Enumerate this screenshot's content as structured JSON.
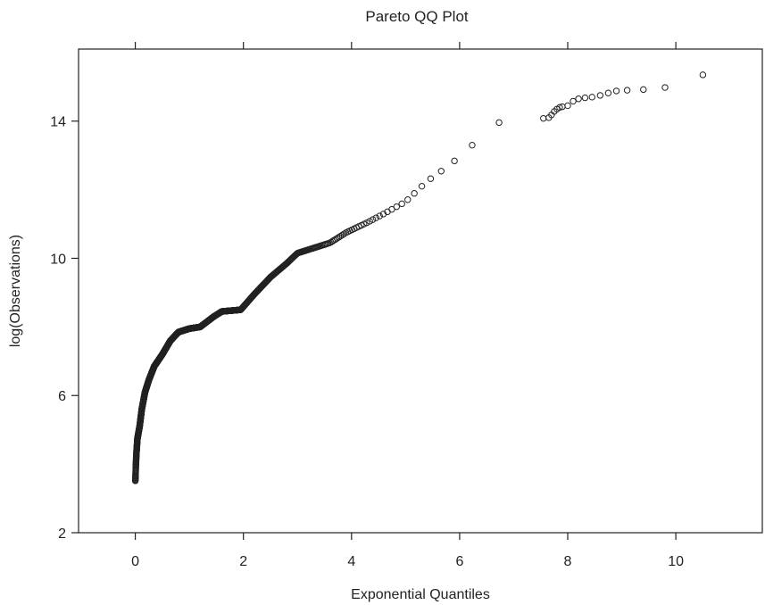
{
  "chart_data": {
    "type": "scatter",
    "title": "Pareto QQ Plot",
    "xlabel": "Exponential Quantiles",
    "ylabel": "log(Observations)",
    "xlim": [
      -1.05,
      11.6
    ],
    "ylim": [
      2,
      16.1
    ],
    "x_ticks": [
      0,
      2,
      4,
      6,
      8,
      10
    ],
    "y_ticks": [
      2,
      6,
      10,
      14
    ],
    "grid": false,
    "legend": "none",
    "marker": "open-circle",
    "curve_knots": [
      [
        0.0,
        3.5
      ],
      [
        0.005,
        3.7
      ],
      [
        0.01,
        3.95
      ],
      [
        0.02,
        4.3
      ],
      [
        0.04,
        4.75
      ],
      [
        0.08,
        5.1
      ],
      [
        0.12,
        5.6
      ],
      [
        0.18,
        6.1
      ],
      [
        0.25,
        6.45
      ],
      [
        0.35,
        6.85
      ],
      [
        0.5,
        7.2
      ],
      [
        0.65,
        7.6
      ],
      [
        0.8,
        7.85
      ],
      [
        1.0,
        7.95
      ],
      [
        1.2,
        8.0
      ],
      [
        1.45,
        8.3
      ],
      [
        1.6,
        8.45
      ],
      [
        1.95,
        8.5
      ],
      [
        2.2,
        8.95
      ],
      [
        2.5,
        9.45
      ],
      [
        2.8,
        9.85
      ],
      [
        3.0,
        10.15
      ],
      [
        3.3,
        10.3
      ],
      [
        3.6,
        10.45
      ],
      [
        3.9,
        10.75
      ],
      [
        4.3,
        11.05
      ],
      [
        4.6,
        11.3
      ],
      [
        5.0,
        11.65
      ],
      [
        5.4,
        12.25
      ],
      [
        5.8,
        12.7
      ],
      [
        6.1,
        13.1
      ],
      [
        6.4,
        13.55
      ],
      [
        6.7,
        13.95
      ],
      [
        7.1,
        14.05
      ],
      [
        7.5,
        14.1
      ],
      [
        7.8,
        14.2
      ]
    ],
    "curve_point_count": 1500,
    "tail_points": [
      [
        7.55,
        14.08
      ],
      [
        7.65,
        14.1
      ],
      [
        7.7,
        14.18
      ],
      [
        7.75,
        14.28
      ],
      [
        7.8,
        14.35
      ],
      [
        7.85,
        14.4
      ],
      [
        7.9,
        14.42
      ],
      [
        8.0,
        14.45
      ],
      [
        8.1,
        14.58
      ],
      [
        8.2,
        14.65
      ],
      [
        8.32,
        14.68
      ],
      [
        8.45,
        14.7
      ],
      [
        8.6,
        14.75
      ],
      [
        8.75,
        14.82
      ],
      [
        8.9,
        14.88
      ],
      [
        9.1,
        14.9
      ],
      [
        9.4,
        14.92
      ],
      [
        9.8,
        14.98
      ],
      [
        10.5,
        15.35
      ]
    ]
  }
}
